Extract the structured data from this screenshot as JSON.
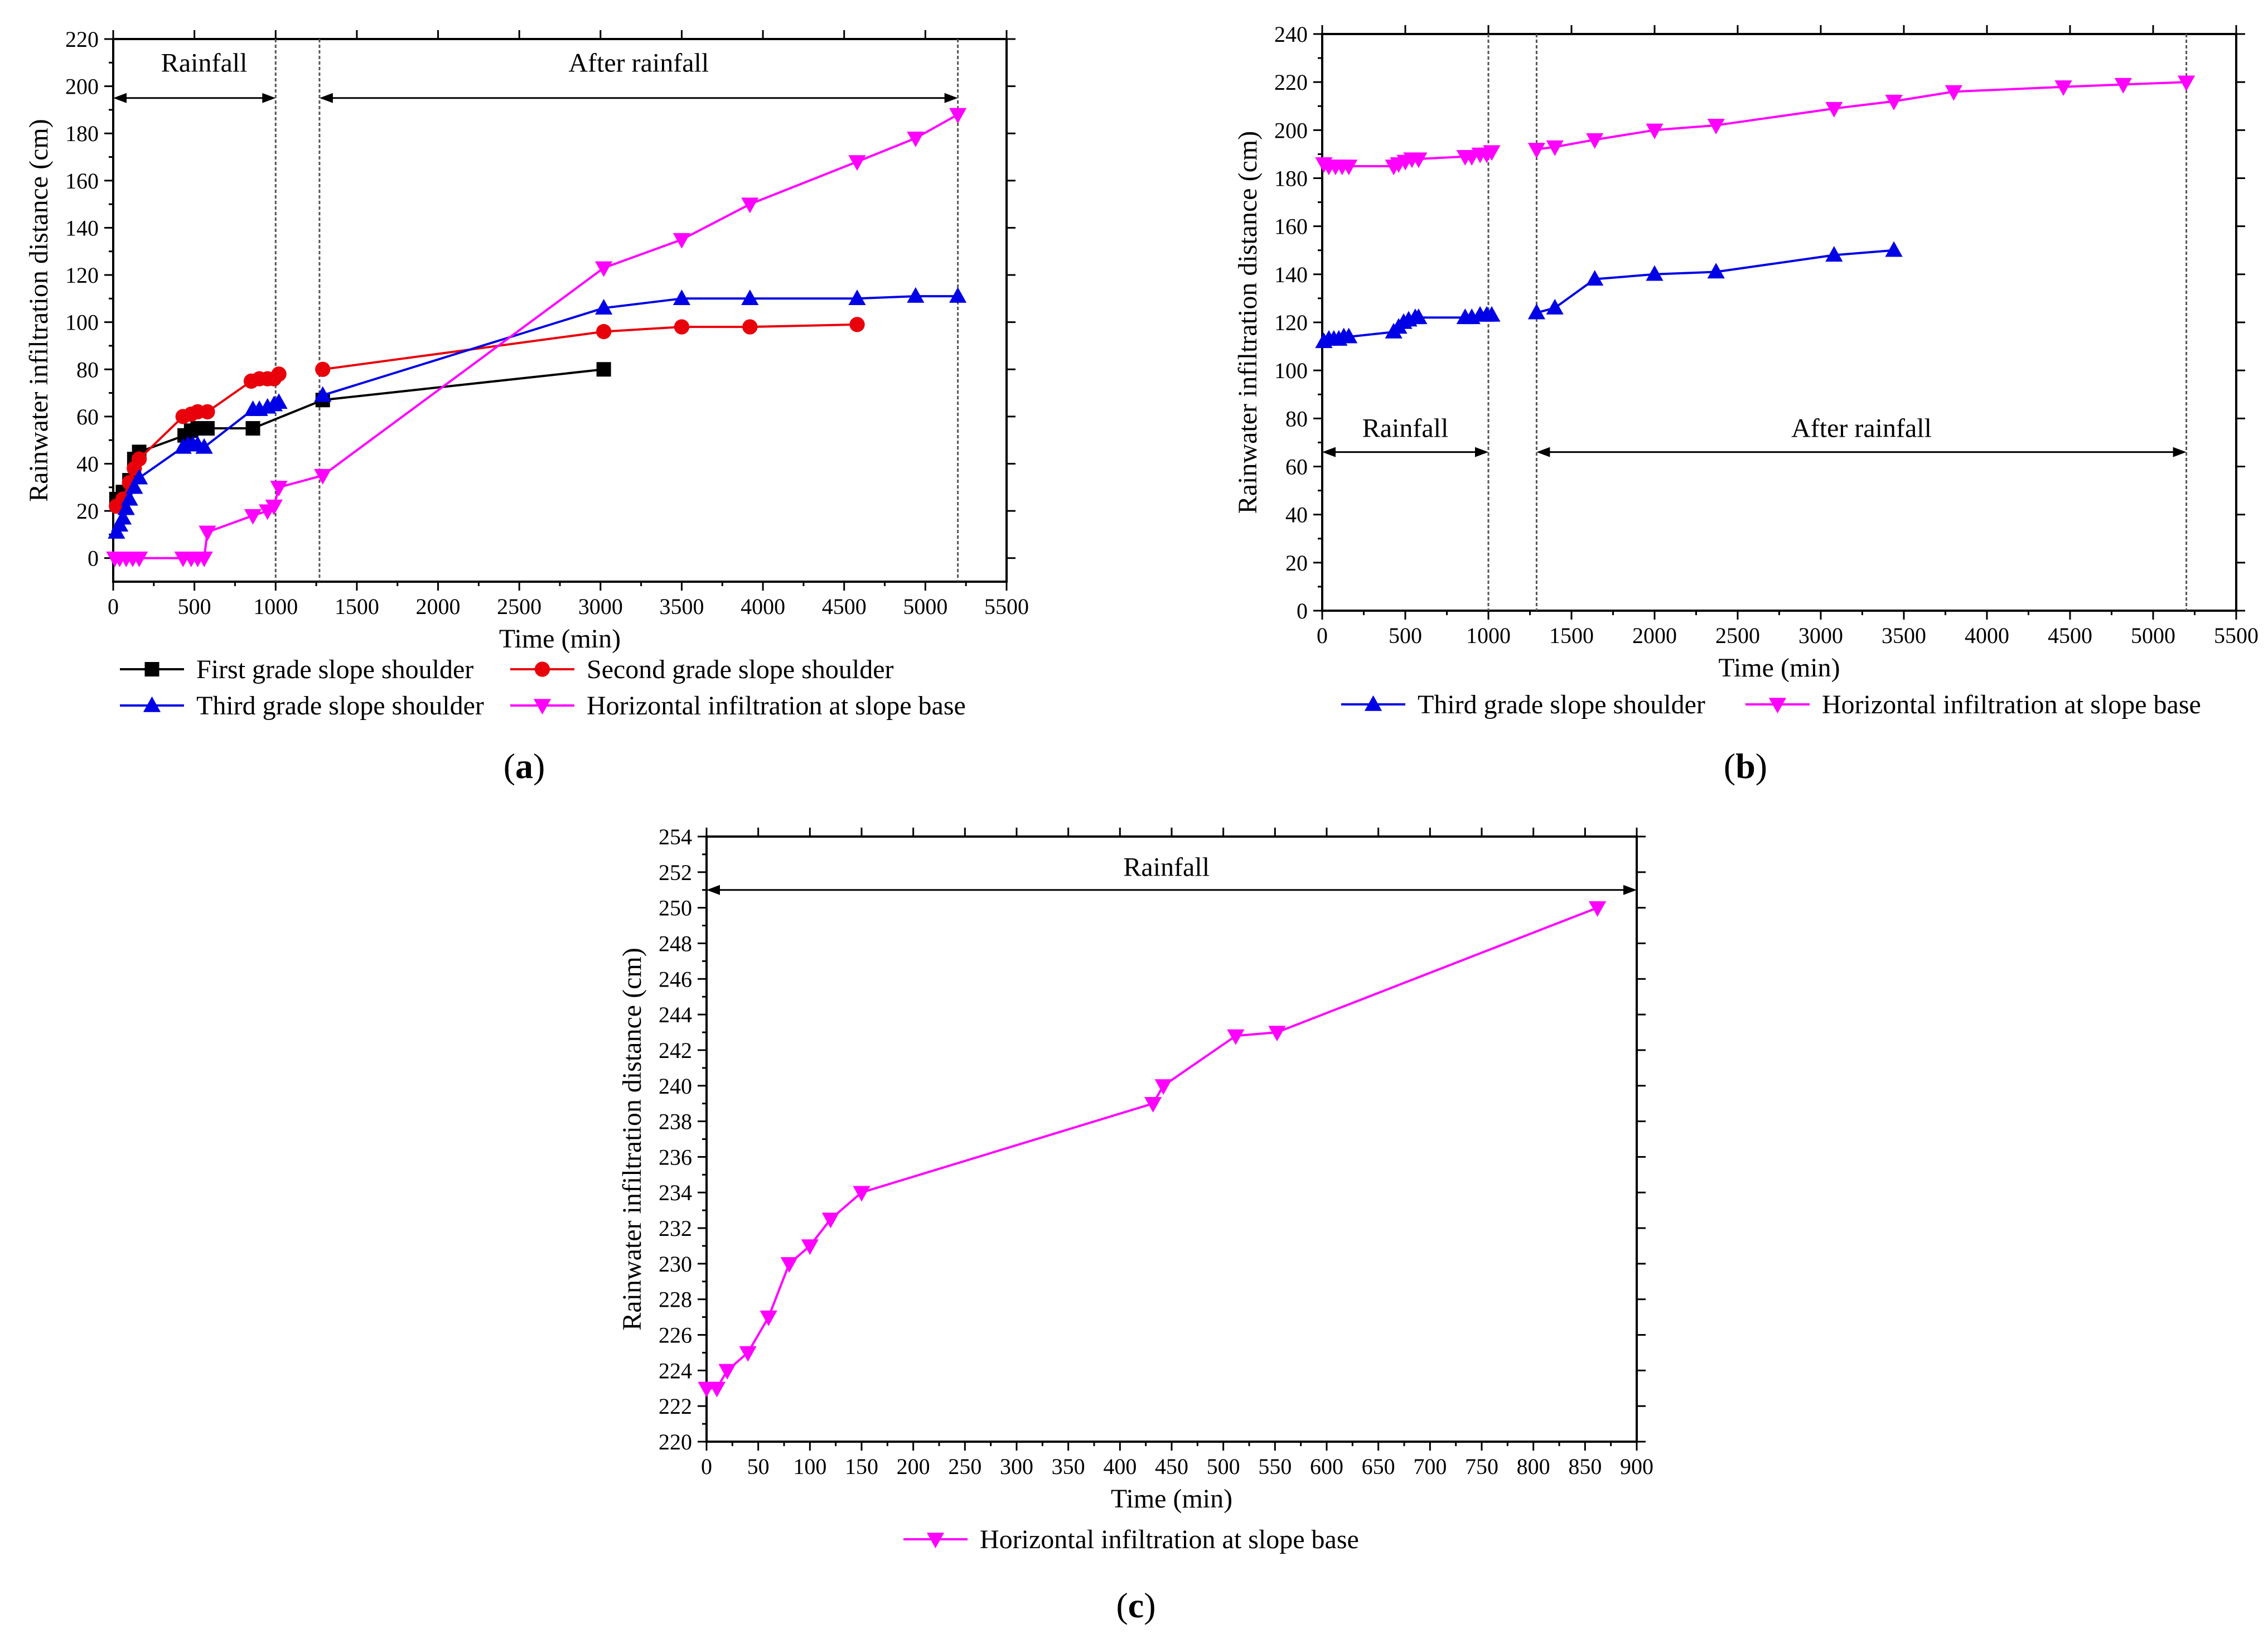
{
  "chart_data": [
    {
      "id": "a",
      "type": "line",
      "panel_label": "a",
      "xlabel": "Time (min)",
      "ylabel": "Rainwater infiltration distance (cm)",
      "xlim": [
        0,
        5500
      ],
      "ylim": [
        -10,
        220
      ],
      "xticks": [
        0,
        500,
        1000,
        1500,
        2000,
        2500,
        3000,
        3500,
        4000,
        4500,
        5000,
        5500
      ],
      "yticks": [
        0,
        20,
        40,
        60,
        80,
        100,
        120,
        140,
        160,
        180,
        200,
        220
      ],
      "vlines": [
        1000,
        1270,
        5200
      ],
      "annotations": [
        {
          "text": "Rainfall",
          "x_from": 0,
          "x_to": 1000,
          "y": 195,
          "text_x": 560,
          "text_y": 210
        },
        {
          "text": "After rainfall",
          "x_from": 1270,
          "x_to": 5200,
          "y": 195,
          "text_x": 3235,
          "text_y": 210
        }
      ],
      "legend": [
        "First grade slope shoulder",
        "Second grade slope shoulder",
        "Third grade slope shoulder",
        "Horizontal infiltration at slope base"
      ],
      "series": [
        {
          "name": "First grade slope shoulder",
          "color": "#000000",
          "marker": "square",
          "x": [
            20,
            60,
            100,
            130,
            160,
            440,
            480,
            520,
            580,
            860,
            1290,
            3020
          ],
          "y": [
            25,
            28,
            33,
            42,
            45,
            52,
            54,
            55,
            55,
            55,
            67,
            80
          ]
        },
        {
          "name": "Second grade slope shoulder",
          "color": "#e8000b",
          "marker": "circle",
          "x": [
            20,
            60,
            100,
            130,
            160,
            430,
            480,
            520,
            580,
            850,
            900,
            950,
            990,
            1020,
            1290,
            3020,
            3500,
            3920,
            4580
          ],
          "y": [
            22,
            25,
            32,
            38,
            42,
            60,
            61,
            62,
            62,
            75,
            76,
            76,
            76,
            78,
            80,
            96,
            98,
            98,
            99
          ],
          "segments": [
            [
              0,
              14
            ],
            [
              14,
              19
            ]
          ]
        },
        {
          "name": "Third grade slope shoulder",
          "color": "#0000e6",
          "marker": "triangle-up",
          "x": [
            20,
            40,
            60,
            80,
            100,
            130,
            160,
            430,
            460,
            490,
            520,
            560,
            860,
            900,
            950,
            990,
            1020,
            1290,
            3020,
            3500,
            3920,
            4580,
            4940,
            5200
          ],
          "y": [
            11,
            14,
            17,
            21,
            25,
            30,
            34,
            47,
            48,
            48,
            48,
            47,
            63,
            63,
            64,
            65,
            66,
            69,
            106,
            110,
            110,
            110,
            111,
            111
          ],
          "segments": [
            [
              0,
              17
            ],
            [
              17,
              24
            ]
          ]
        },
        {
          "name": "Horizontal infiltration at slope base",
          "color": "#ff00ff",
          "marker": "triangle-down",
          "x": [
            10,
            40,
            80,
            120,
            160,
            430,
            480,
            520,
            560,
            580,
            860,
            950,
            990,
            1020,
            1290,
            3020,
            3500,
            3920,
            4580,
            4940,
            5200
          ],
          "y": [
            0,
            0,
            0,
            0,
            0,
            0,
            0,
            0,
            0,
            11,
            18,
            20,
            22,
            30,
            35,
            123,
            135,
            150,
            168,
            178,
            188
          ]
        }
      ]
    },
    {
      "id": "b",
      "type": "line",
      "panel_label": "b",
      "xlabel": "Time (min)",
      "ylabel": "Rainwater infiltration distance (cm)",
      "xlim": [
        0,
        5500
      ],
      "ylim": [
        0,
        240
      ],
      "xticks": [
        0,
        500,
        1000,
        1500,
        2000,
        2500,
        3000,
        3500,
        4000,
        4500,
        5000,
        5500
      ],
      "yticks": [
        0,
        20,
        40,
        60,
        80,
        100,
        120,
        140,
        160,
        180,
        200,
        220,
        240
      ],
      "vlines": [
        1000,
        1290,
        5200
      ],
      "annotations": [
        {
          "text": "Rainfall",
          "x_from": 0,
          "x_to": 1000,
          "y": 66,
          "text_x": 500,
          "text_y": 76
        },
        {
          "text": "After rainfall",
          "x_from": 1290,
          "x_to": 5200,
          "y": 66,
          "text_x": 3245,
          "text_y": 76
        }
      ],
      "legend": [
        "Third grade slope shoulder",
        "Horizontal infiltration at slope base"
      ],
      "series": [
        {
          "name": "Third grade slope shoulder",
          "color": "#0000e6",
          "marker": "triangle-up",
          "x": [
            10,
            40,
            70,
            100,
            130,
            160,
            430,
            460,
            490,
            520,
            560,
            580,
            860,
            900,
            950,
            990,
            1020,
            1290,
            1400,
            1640,
            2000,
            2370,
            3080,
            3440
          ],
          "y": [
            112,
            113,
            113,
            113,
            114,
            114,
            116,
            118,
            120,
            121,
            122,
            122,
            122,
            122,
            123,
            123,
            123,
            124,
            126,
            138,
            140,
            141,
            148,
            150
          ],
          "segments": [
            [
              0,
              17
            ],
            [
              17,
              24
            ]
          ]
        },
        {
          "name": "Horizontal infiltration at slope base",
          "color": "#ff00ff",
          "marker": "triangle-down",
          "x": [
            10,
            40,
            80,
            120,
            160,
            430,
            460,
            500,
            540,
            580,
            860,
            900,
            950,
            990,
            1020,
            1290,
            1400,
            1640,
            2000,
            2370,
            3080,
            3440,
            3800,
            4460,
            4820,
            5200
          ],
          "y": [
            186,
            185,
            185,
            185,
            185,
            185,
            186,
            187,
            188,
            188,
            189,
            189,
            190,
            190,
            191,
            192,
            193,
            196,
            200,
            202,
            209,
            212,
            216,
            218,
            219,
            220
          ],
          "segments": [
            [
              0,
              15
            ],
            [
              15,
              26
            ]
          ]
        }
      ]
    },
    {
      "id": "c",
      "type": "line",
      "panel_label": "c",
      "xlabel": "Time (min)",
      "ylabel": "Rainwater infiltration distance (cm)",
      "xlim": [
        0,
        900
      ],
      "ylim": [
        220,
        254
      ],
      "xticks": [
        0,
        50,
        100,
        150,
        200,
        250,
        300,
        350,
        400,
        450,
        500,
        550,
        600,
        650,
        700,
        750,
        800,
        850,
        900
      ],
      "yticks": [
        220,
        222,
        224,
        226,
        228,
        230,
        232,
        234,
        236,
        238,
        240,
        242,
        244,
        246,
        248,
        250,
        252,
        254
      ],
      "vlines": [],
      "annotations": [
        {
          "text": "Rainfall",
          "x_from": 0,
          "x_to": 900,
          "y": 251,
          "text_x": 445,
          "text_y": 252.3
        }
      ],
      "legend": [
        "Horizontal infiltration at slope base"
      ],
      "series": [
        {
          "name": "Horizontal infiltration at slope base",
          "color": "#ff00ff",
          "marker": "triangle-down",
          "x": [
            0,
            10,
            20,
            40,
            60,
            80,
            100,
            120,
            150,
            432,
            442,
            512,
            552,
            862
          ],
          "y": [
            223,
            223,
            224,
            225,
            227,
            230,
            231,
            232.5,
            234,
            239,
            240,
            242.8,
            243,
            250
          ]
        }
      ]
    }
  ]
}
